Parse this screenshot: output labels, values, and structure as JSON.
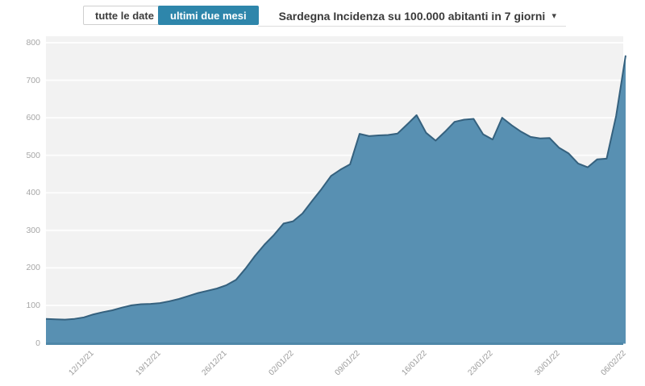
{
  "toolbar": {
    "buttons": [
      {
        "label": "tutte le date",
        "active": false
      },
      {
        "label": "ultimi due mesi",
        "active": true
      }
    ],
    "select": {
      "value": "Sardegna Incidenza su 100.000 abitanti in 7 giorni",
      "caret": "▾"
    }
  },
  "colors": {
    "accent_blue": "#2e86ab",
    "area_fill": "#5890b2",
    "area_stroke": "#35617e",
    "baseline_blue": "#4e87a8",
    "panel_bg": "#f2f2f2",
    "gridline": "#ffffff",
    "tick_text": "#9a9a9a"
  },
  "chart_data": {
    "type": "area",
    "title": "Sardegna Incidenza su 100.000 abitanti in 7 giorni",
    "series_name": "Incidenza su 100.000 abitanti in 7 giorni",
    "x": [
      "08/12/21",
      "09/12/21",
      "10/12/21",
      "11/12/21",
      "12/12/21",
      "13/12/21",
      "14/12/21",
      "15/12/21",
      "16/12/21",
      "17/12/21",
      "18/12/21",
      "19/12/21",
      "20/12/21",
      "21/12/21",
      "22/12/21",
      "23/12/21",
      "24/12/21",
      "25/12/21",
      "26/12/21",
      "27/12/21",
      "28/12/21",
      "29/12/21",
      "30/12/21",
      "31/12/21",
      "01/01/22",
      "02/01/22",
      "03/01/22",
      "04/01/22",
      "05/01/22",
      "06/01/22",
      "07/01/22",
      "08/01/22",
      "09/01/22",
      "10/01/22",
      "11/01/22",
      "12/01/22",
      "13/01/22",
      "14/01/22",
      "15/01/22",
      "16/01/22",
      "17/01/22",
      "18/01/22",
      "19/01/22",
      "20/01/22",
      "21/01/22",
      "22/01/22",
      "23/01/22",
      "24/01/22",
      "25/01/22",
      "26/01/22",
      "27/01/22",
      "28/01/22",
      "29/01/22",
      "30/01/22",
      "31/01/22",
      "01/02/22",
      "02/02/22",
      "03/02/22",
      "04/02/22",
      "05/02/22",
      "06/02/22",
      "07/02/22"
    ],
    "values": [
      64,
      63,
      62,
      64,
      68,
      76,
      82,
      87,
      94,
      100,
      103,
      104,
      106,
      111,
      117,
      125,
      133,
      139,
      145,
      154,
      168,
      198,
      232,
      262,
      288,
      318,
      324,
      345,
      378,
      410,
      445,
      462,
      476,
      557,
      551,
      553,
      554,
      558,
      582,
      607,
      560,
      539,
      563,
      589,
      595,
      597,
      556,
      542,
      600,
      580,
      563,
      549,
      545,
      546,
      520,
      505,
      478,
      468,
      489,
      491,
      605,
      766
    ],
    "x_tick_labels": [
      "12/12/21",
      "19/12/21",
      "26/12/21",
      "02/01/22",
      "09/01/22",
      "16/01/22",
      "23/01/22",
      "30/01/22",
      "06/02/22"
    ],
    "x_tick_indices": [
      4,
      11,
      18,
      25,
      32,
      39,
      46,
      53,
      60
    ],
    "y_ticks": [
      0,
      100,
      200,
      300,
      400,
      500,
      600,
      700,
      800
    ],
    "ylim": [
      0,
      800
    ],
    "xlabel": "",
    "ylabel": "",
    "legend": "none",
    "grid": "horizontal white gridlines on light gray panel"
  }
}
